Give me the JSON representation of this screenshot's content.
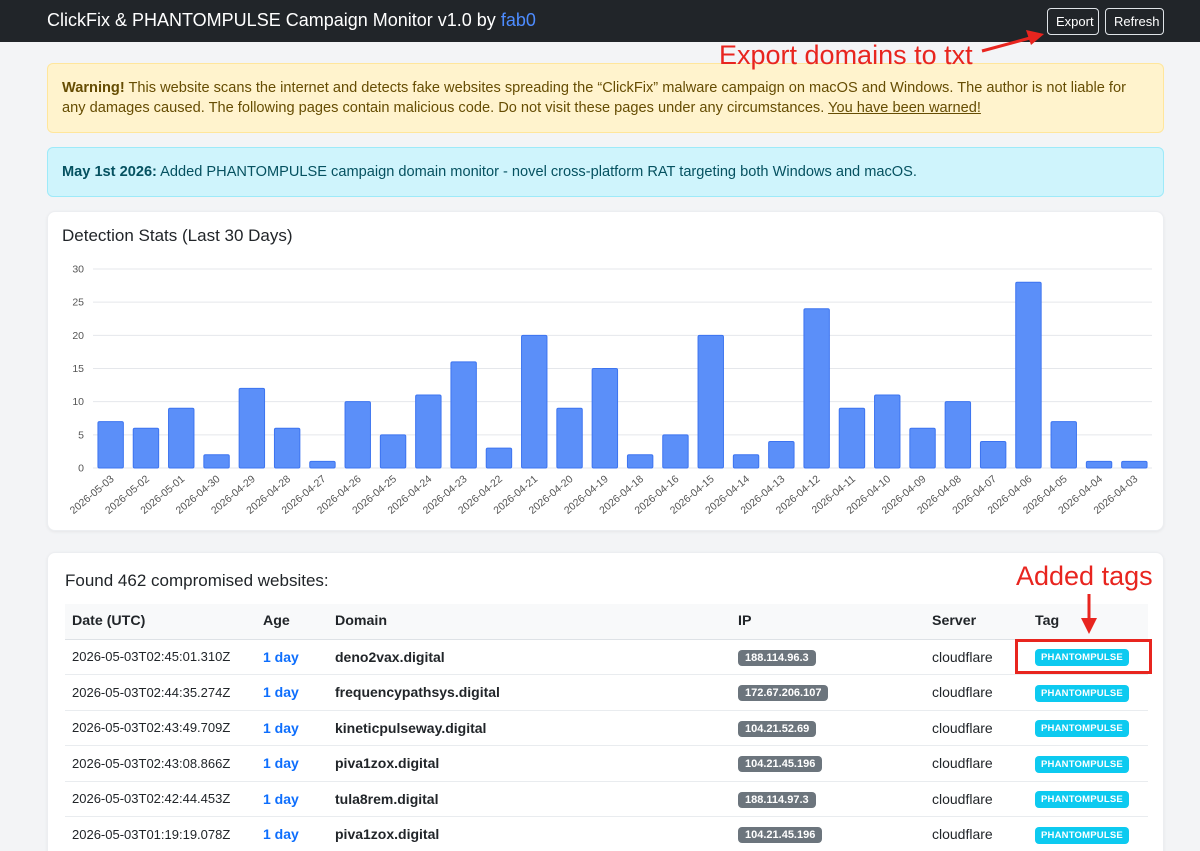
{
  "header": {
    "title_prefix": "ClickFix & PHANTOMPULSE Campaign Monitor v1.0 by ",
    "author": "fab0",
    "export_label": "Export",
    "refresh_label": "Refresh"
  },
  "annotations": {
    "export_note": "Export domains to txt",
    "tags_note": "Added tags",
    "color": "#e8251f"
  },
  "warning": {
    "bold": "Warning!",
    "text": " This website scans the internet and detects fake websites spreading the “ClickFix” malware campaign on macOS and Windows. The author is not liable for any damages caused. The following pages contain malicious code. Do not visit these pages under any circumstances. ",
    "link": "You have been warned!"
  },
  "info": {
    "bold": "May 1st 2026:",
    "text": " Added PHANTOMPULSE campaign domain monitor - novel cross-platform RAT targeting both Windows and macOS."
  },
  "chart_data": {
    "type": "bar",
    "title": "Detection Stats (Last 30 Days)",
    "categories": [
      "2026-05-03",
      "2026-05-02",
      "2026-05-01",
      "2026-04-30",
      "2026-04-29",
      "2026-04-28",
      "2026-04-27",
      "2026-04-26",
      "2026-04-25",
      "2026-04-24",
      "2026-04-23",
      "2026-04-22",
      "2026-04-21",
      "2026-04-20",
      "2026-04-19",
      "2026-04-18",
      "2026-04-16",
      "2026-04-15",
      "2026-04-14",
      "2026-04-13",
      "2026-04-12",
      "2026-04-11",
      "2026-04-10",
      "2026-04-09",
      "2026-04-08",
      "2026-04-07",
      "2026-04-06",
      "2026-04-05",
      "2026-04-04",
      "2026-04-03"
    ],
    "values": [
      7,
      6,
      9,
      2,
      12,
      6,
      1,
      10,
      5,
      11,
      16,
      3,
      20,
      9,
      15,
      2,
      5,
      20,
      2,
      4,
      24,
      9,
      11,
      6,
      10,
      4,
      28,
      7,
      1,
      1
    ],
    "ylim": [
      0,
      30
    ],
    "yticks": [
      0,
      5,
      10,
      15,
      20,
      25,
      30
    ],
    "grid": true,
    "bar_color": "#5b8ff9",
    "bar_border": "#3d74f0"
  },
  "table": {
    "found_text": "Found 462 compromised websites:",
    "headers": [
      "Date (UTC)",
      "Age",
      "Domain",
      "IP",
      "Server",
      "Tag"
    ],
    "rows": [
      {
        "date": "2026-05-03T02:45:01.310Z",
        "age": "1 day",
        "domain": "deno2vax.digital",
        "ip": "188.114.96.3",
        "server": "cloudflare",
        "tag": "PHANTOMPULSE"
      },
      {
        "date": "2026-05-03T02:44:35.274Z",
        "age": "1 day",
        "domain": "frequencypathsys.digital",
        "ip": "172.67.206.107",
        "server": "cloudflare",
        "tag": "PHANTOMPULSE"
      },
      {
        "date": "2026-05-03T02:43:49.709Z",
        "age": "1 day",
        "domain": "kineticpulseway.digital",
        "ip": "104.21.52.69",
        "server": "cloudflare",
        "tag": "PHANTOMPULSE"
      },
      {
        "date": "2026-05-03T02:43:08.866Z",
        "age": "1 day",
        "domain": "piva1zox.digital",
        "ip": "104.21.45.196",
        "server": "cloudflare",
        "tag": "PHANTOMPULSE"
      },
      {
        "date": "2026-05-03T02:42:44.453Z",
        "age": "1 day",
        "domain": "tula8rem.digital",
        "ip": "188.114.97.3",
        "server": "cloudflare",
        "tag": "PHANTOMPULSE"
      },
      {
        "date": "2026-05-03T01:19:19.078Z",
        "age": "1 day",
        "domain": "piva1zox.digital",
        "ip": "104.21.45.196",
        "server": "cloudflare",
        "tag": "PHANTOMPULSE"
      }
    ]
  }
}
